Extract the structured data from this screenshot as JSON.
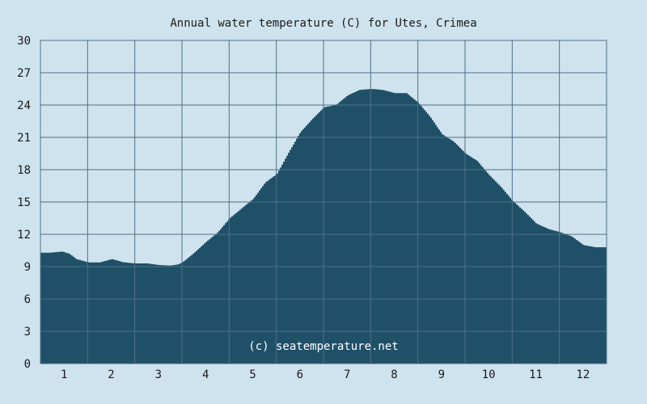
{
  "chart_data": {
    "type": "area",
    "title": "Annual water temperature (C) for Utes, Crimea",
    "xlabel": "",
    "ylabel": "",
    "x_label_unit": "month",
    "categories": [
      "1",
      "2",
      "3",
      "4",
      "5",
      "6",
      "7",
      "8",
      "9",
      "10",
      "11",
      "12"
    ],
    "ylim": [
      0,
      30
    ],
    "yticks": [
      0,
      3,
      6,
      9,
      12,
      15,
      18,
      21,
      24,
      27,
      30
    ],
    "grid": true,
    "series": [
      {
        "x": [
          0.5,
          0.7,
          0.95,
          1.1,
          1.25,
          1.5,
          1.75,
          2.0,
          2.25,
          2.5,
          2.75,
          3.0,
          3.25,
          3.4,
          3.5,
          3.75,
          4.0,
          4.25,
          4.5,
          4.75,
          5.0,
          5.25,
          5.5,
          5.75,
          6.0,
          6.25,
          6.5,
          6.75,
          7.0,
          7.25,
          7.5,
          7.75,
          8.0,
          8.25,
          8.5,
          8.75,
          9.0,
          9.25,
          9.5,
          9.75,
          10.0,
          10.25,
          10.5,
          10.75,
          11.0,
          11.25,
          11.5,
          11.75,
          12.0,
          12.25,
          12.5
        ],
        "values": [
          10.3,
          10.3,
          10.4,
          10.2,
          9.7,
          9.4,
          9.4,
          9.7,
          9.4,
          9.3,
          9.3,
          9.15,
          9.1,
          9.2,
          9.4,
          10.3,
          11.3,
          12.2,
          13.5,
          14.4,
          15.3,
          16.8,
          17.6,
          19.6,
          21.5,
          22.7,
          23.8,
          24.0,
          24.9,
          25.4,
          25.5,
          25.4,
          25.1,
          25.1,
          24.2,
          22.9,
          21.3,
          20.6,
          19.5,
          18.8,
          17.5,
          16.4,
          15.1,
          14.1,
          13.0,
          12.5,
          12.2,
          11.8,
          11.0,
          10.8,
          10.8
        ]
      }
    ],
    "fill_color": "#1f5068",
    "grid_color": "#4f6f85",
    "background": "#cfe3ee",
    "watermark": "(c) seatemperature.net"
  }
}
